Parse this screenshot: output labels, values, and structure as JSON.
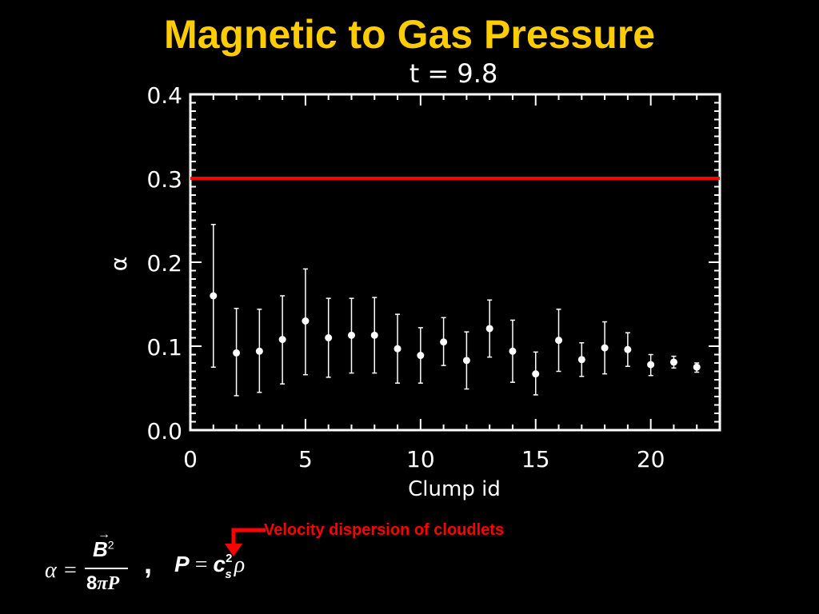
{
  "slide": {
    "title": "Magnetic to Gas Pressure",
    "annotation": "Velocity dispersion of cloudlets",
    "formula_alpha": {
      "lhs": "α",
      "eq": "=",
      "numerator": "B",
      "numerator_vector_arrow": "→",
      "numerator_power": "2",
      "denominator_prefix": "8",
      "denominator_pi": "π",
      "denominator_var": "P"
    },
    "separator": ",",
    "formula_pressure": {
      "lhs": "P",
      "eq": "=",
      "c": "c",
      "power": "2",
      "subscript": "s",
      "rho": "ρ"
    }
  },
  "colors": {
    "title": "#ffcc00",
    "axes": "#ffffff",
    "threshold_line": "#ff0000",
    "points": "#ffffff",
    "annotation": "#ff0000"
  },
  "chart_data": {
    "type": "scatter",
    "title": "t = 9.8",
    "xlabel": "Clump id",
    "ylabel": "α",
    "xlim": [
      0,
      23
    ],
    "ylim": [
      0.0,
      0.4
    ],
    "xticks": [
      0,
      5,
      10,
      15,
      20
    ],
    "xtick_labels": [
      "0",
      "5",
      "10",
      "15",
      "20"
    ],
    "yticks": [
      0.0,
      0.1,
      0.2,
      0.3,
      0.4
    ],
    "ytick_labels": [
      "0.0",
      "0.1",
      "0.2",
      "0.3",
      "0.4"
    ],
    "x_minor_step": 1,
    "y_minor_step": 0.01,
    "hline": 0.3,
    "series": [
      {
        "x": [
          1,
          2,
          3,
          4,
          5,
          6,
          7,
          8,
          9,
          10,
          11,
          12,
          13,
          14,
          15,
          16,
          17,
          18,
          19,
          20,
          21,
          22
        ],
        "y": [
          0.16,
          0.092,
          0.094,
          0.108,
          0.13,
          0.11,
          0.113,
          0.113,
          0.097,
          0.089,
          0.105,
          0.083,
          0.121,
          0.094,
          0.067,
          0.107,
          0.084,
          0.098,
          0.096,
          0.078,
          0.081,
          0.075
        ],
        "yerr_low": [
          0.075,
          0.041,
          0.045,
          0.055,
          0.066,
          0.063,
          0.068,
          0.068,
          0.056,
          0.056,
          0.077,
          0.049,
          0.087,
          0.057,
          0.042,
          0.07,
          0.064,
          0.067,
          0.076,
          0.065,
          0.074,
          0.069
        ],
        "yerr_high": [
          0.245,
          0.145,
          0.144,
          0.16,
          0.192,
          0.157,
          0.157,
          0.158,
          0.138,
          0.122,
          0.134,
          0.117,
          0.155,
          0.131,
          0.093,
          0.144,
          0.104,
          0.129,
          0.116,
          0.09,
          0.088,
          0.08
        ]
      }
    ]
  }
}
